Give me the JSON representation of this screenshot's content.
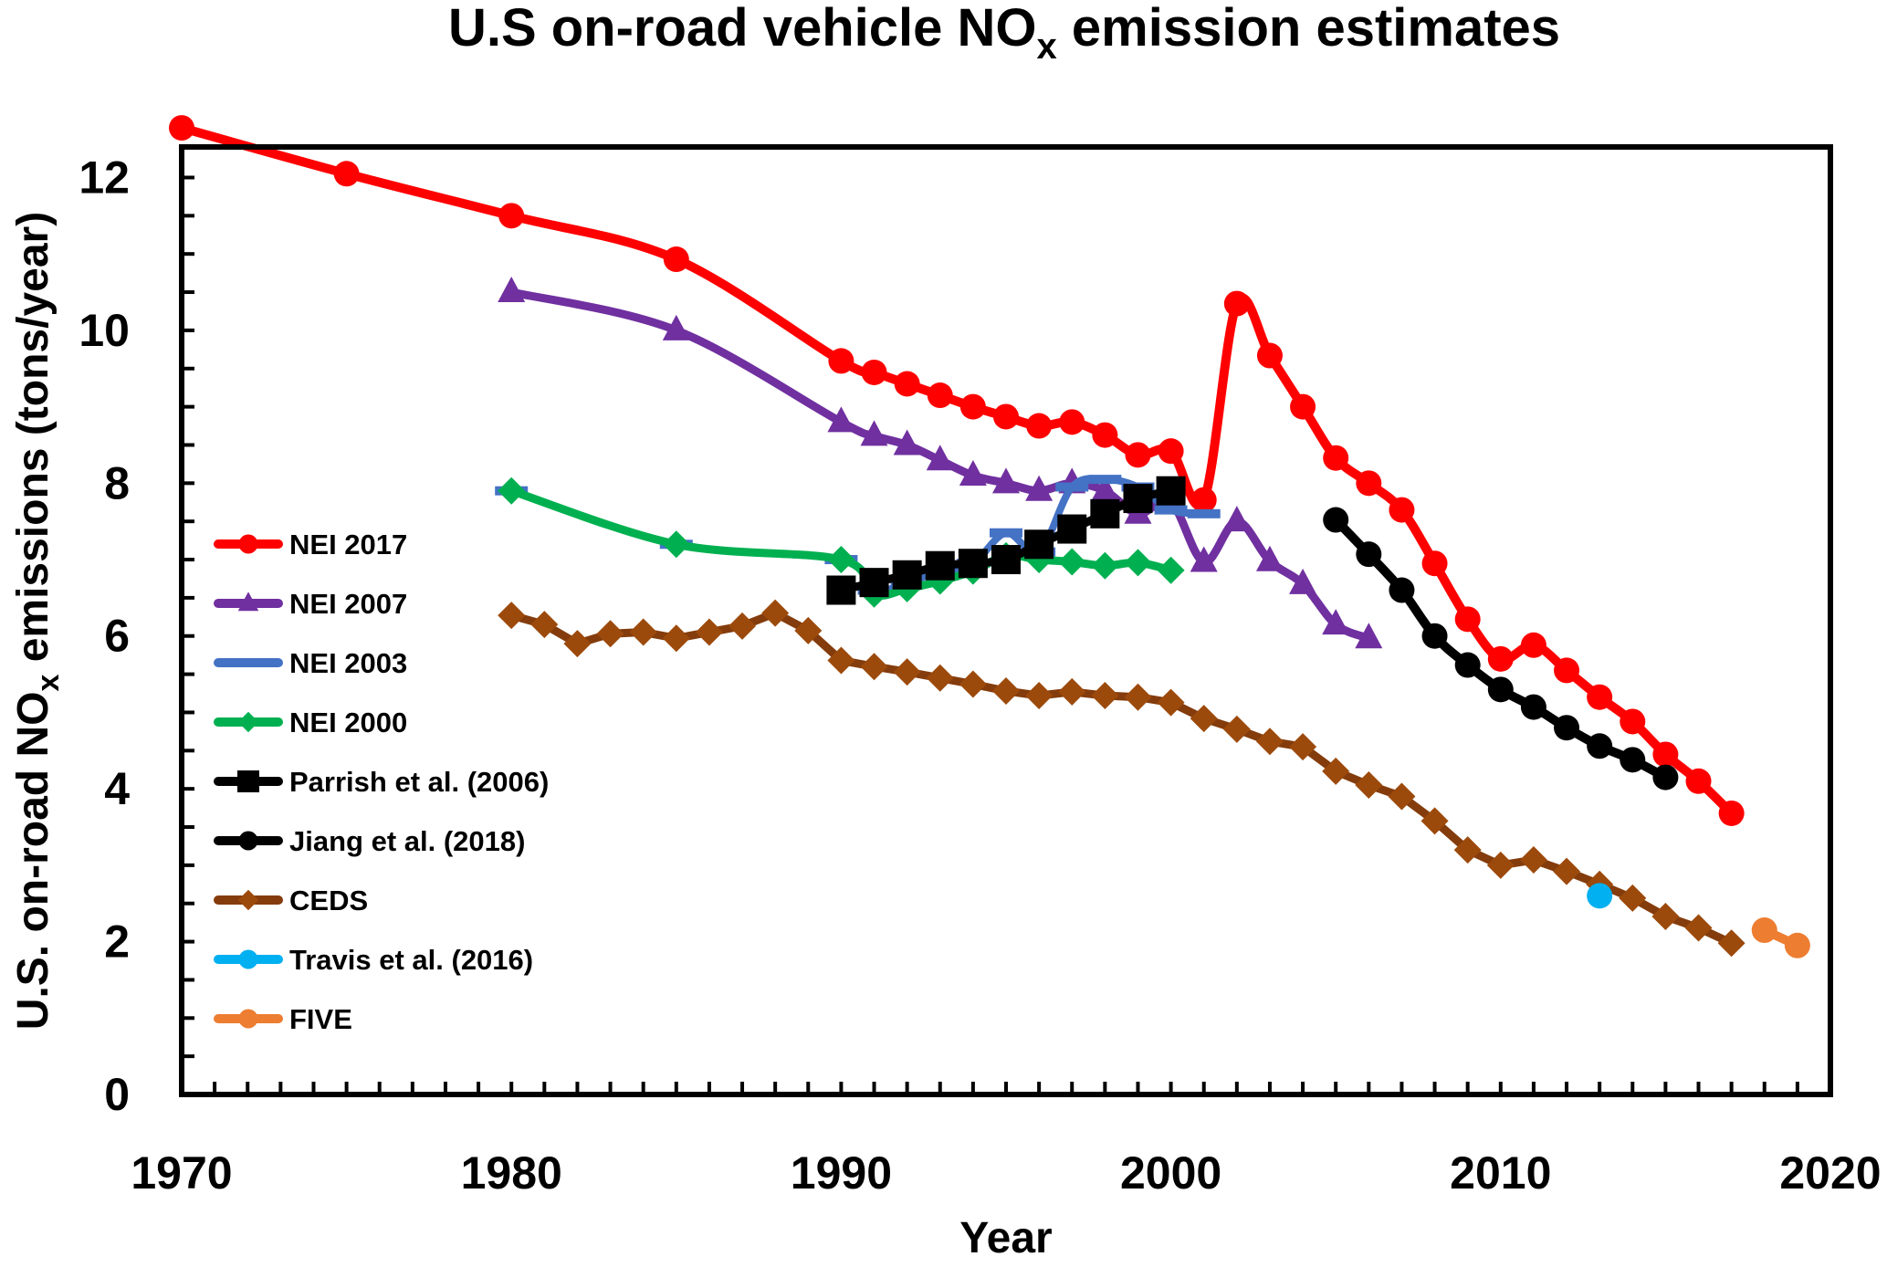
{
  "chart_data": {
    "type": "line",
    "title": {
      "pre": "U.S on-road vehicle NO",
      "sub": "x",
      "post": " emission estimates"
    },
    "xlabel": "Year",
    "ylabel": {
      "pre": "U.S. on-road NO",
      "sub": "x",
      "post": " emissions (tons/year)"
    },
    "xlim": [
      1970,
      2020
    ],
    "ylim": [
      0,
      12.4
    ],
    "xticks": [
      "1970",
      "1980",
      "1990",
      "2000",
      "2010",
      "2020"
    ],
    "yticks": [
      "0",
      "2",
      "4",
      "6",
      "8",
      "10",
      "12"
    ],
    "grid": false,
    "legend_position": "left-middle",
    "series": [
      {
        "name": "NEI 2017",
        "color": "#FF0000",
        "marker": "circle",
        "smooth": true,
        "x": [
          1970,
          1975,
          1980,
          1985,
          1990,
          1991,
          1992,
          1993,
          1994,
          1995,
          1996,
          1997,
          1998,
          1999,
          2000,
          2001,
          2002,
          2003,
          2004,
          2005,
          2006,
          2007,
          2008,
          2009,
          2010,
          2011,
          2012,
          2013,
          2014,
          2015,
          2016,
          2017
        ],
        "y": [
          12.65,
          12.05,
          11.5,
          10.93,
          9.6,
          9.45,
          9.3,
          9.15,
          9.0,
          8.87,
          8.75,
          8.8,
          8.63,
          8.37,
          8.42,
          7.78,
          10.35,
          9.67,
          9.0,
          8.33,
          8.0,
          7.65,
          6.95,
          6.22,
          5.7,
          5.88,
          5.55,
          5.2,
          4.88,
          4.45,
          4.1,
          3.68
        ]
      },
      {
        "name": "NEI 2007",
        "color": "#7030A0",
        "marker": "triangle",
        "smooth": true,
        "x": [
          1980,
          1985,
          1990,
          1991,
          1992,
          1993,
          1994,
          1995,
          1996,
          1997,
          1998,
          1999,
          2000,
          2001,
          2002,
          2003,
          2004,
          2005,
          2006
        ],
        "y": [
          10.5,
          10.0,
          8.8,
          8.62,
          8.5,
          8.3,
          8.1,
          8.0,
          7.9,
          8.0,
          7.9,
          7.6,
          7.75,
          6.97,
          7.5,
          6.98,
          6.68,
          6.15,
          5.97
        ]
      },
      {
        "name": "NEI 2003",
        "color": "#4472C4",
        "marker": "dash",
        "smooth": true,
        "x": [
          1980,
          1985,
          1990,
          1991,
          1992,
          1993,
          1994,
          1995,
          1996,
          1997,
          1998,
          1999,
          2000,
          2001
        ],
        "y": [
          7.9,
          7.2,
          7.0,
          6.6,
          6.7,
          6.85,
          6.95,
          7.35,
          7.1,
          7.95,
          8.05,
          7.95,
          7.65,
          7.6
        ]
      },
      {
        "name": "NEI 2000",
        "color": "#00B050",
        "marker": "diamond",
        "smooth": true,
        "x": [
          1980,
          1985,
          1990,
          1991,
          1992,
          1993,
          1994,
          1995,
          1996,
          1997,
          1998,
          1999,
          2000
        ],
        "y": [
          7.9,
          7.2,
          7.0,
          6.55,
          6.62,
          6.72,
          6.85,
          7.05,
          7.0,
          6.97,
          6.92,
          6.96,
          6.86
        ]
      },
      {
        "name": "Parrish et al. (2006)",
        "color": "#000000",
        "marker": "square",
        "smooth": true,
        "x": [
          1990,
          1991,
          1992,
          1993,
          1994,
          1995,
          1996,
          1997,
          1998,
          1999,
          2000
        ],
        "y": [
          6.6,
          6.7,
          6.8,
          6.92,
          6.95,
          7.0,
          7.2,
          7.4,
          7.6,
          7.8,
          7.9
        ]
      },
      {
        "name": "Jiang et al. (2018)",
        "color": "#000000",
        "marker": "circle",
        "smooth": true,
        "x": [
          2005,
          2006,
          2007,
          2008,
          2009,
          2010,
          2011,
          2012,
          2013,
          2014,
          2015
        ],
        "y": [
          7.52,
          7.07,
          6.6,
          6.0,
          5.62,
          5.3,
          5.07,
          4.8,
          4.56,
          4.38,
          4.15
        ]
      },
      {
        "name": "CEDS",
        "color": "#9C4A0C",
        "line_color": "#843C0C",
        "marker": "diamond",
        "smooth": false,
        "x": [
          1980,
          1981,
          1982,
          1983,
          1984,
          1985,
          1986,
          1987,
          1988,
          1989,
          1990,
          1991,
          1992,
          1993,
          1994,
          1995,
          1996,
          1997,
          1998,
          1999,
          2000,
          2001,
          2002,
          2003,
          2004,
          2005,
          2006,
          2007,
          2008,
          2009,
          2010,
          2011,
          2012,
          2013,
          2014,
          2015,
          2016,
          2017
        ],
        "y": [
          6.27,
          6.15,
          5.9,
          6.03,
          6.05,
          5.97,
          6.05,
          6.13,
          6.3,
          6.07,
          5.68,
          5.6,
          5.53,
          5.45,
          5.37,
          5.28,
          5.22,
          5.27,
          5.22,
          5.2,
          5.13,
          4.92,
          4.78,
          4.62,
          4.55,
          4.23,
          4.05,
          3.9,
          3.58,
          3.2,
          3.0,
          3.07,
          2.92,
          2.75,
          2.57,
          2.33,
          2.18,
          1.98
        ]
      },
      {
        "name": "Travis et al. (2016)",
        "color": "#00B0F0",
        "marker": "circle",
        "smooth": false,
        "x": [
          2013
        ],
        "y": [
          2.6
        ]
      },
      {
        "name": "FIVE",
        "color": "#ED7D31",
        "marker": "circle",
        "smooth": false,
        "x": [
          2018,
          2019
        ],
        "y": [
          2.15,
          1.95
        ]
      }
    ]
  }
}
